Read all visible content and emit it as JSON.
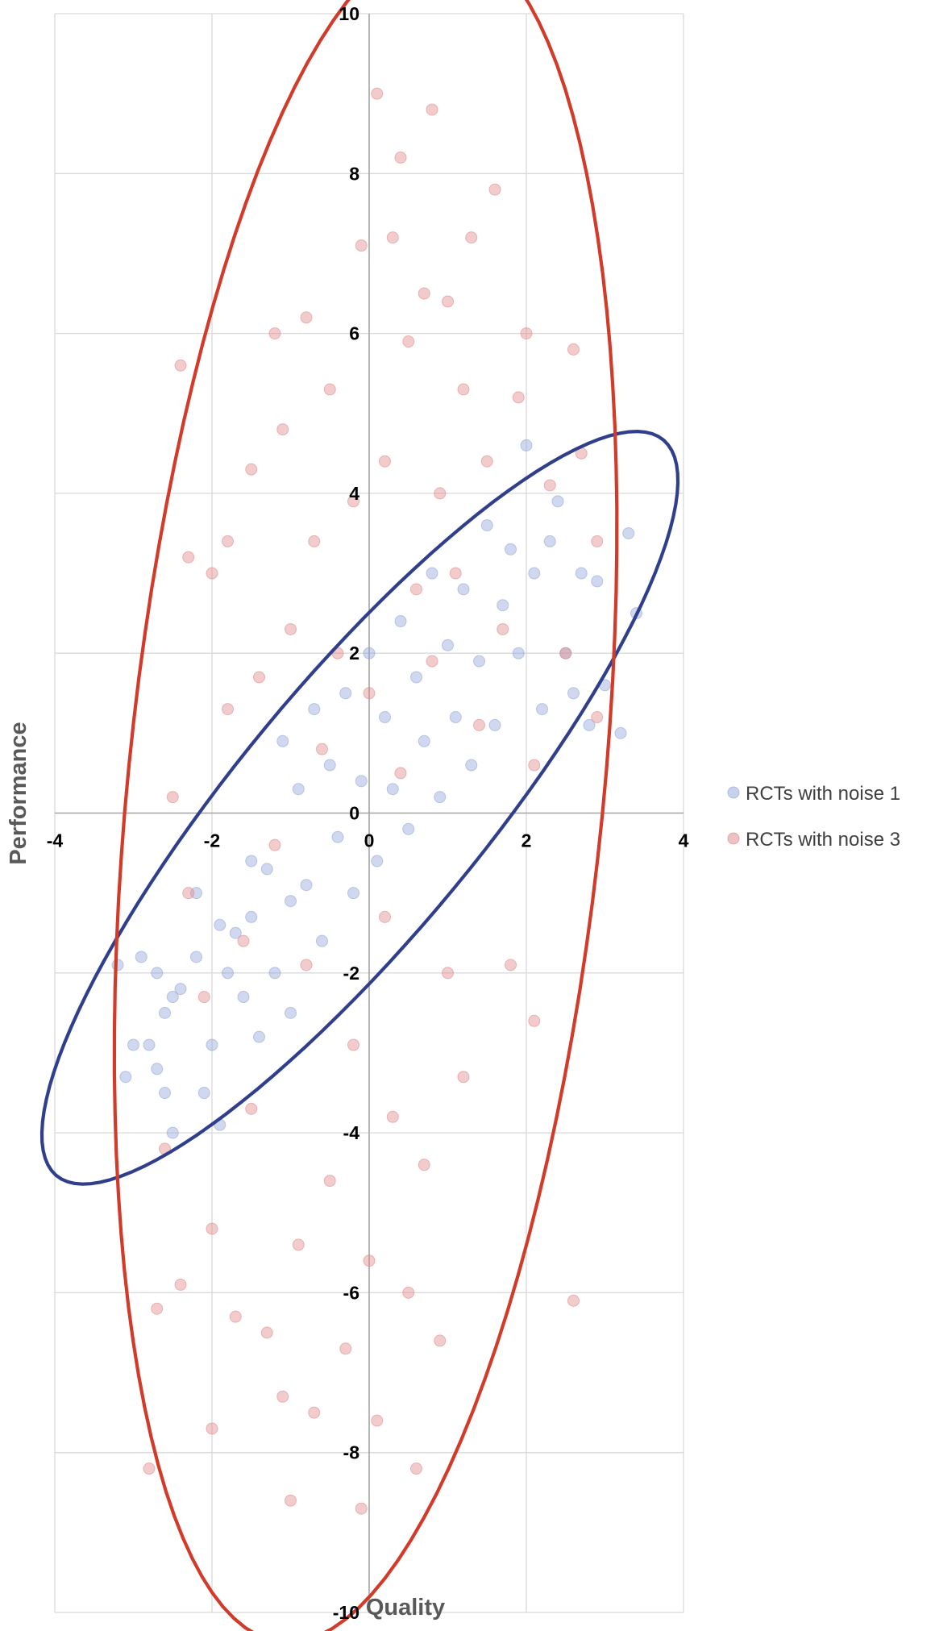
{
  "chart_data": {
    "type": "scatter",
    "xlabel": "Quality",
    "ylabel": "Performance",
    "xlim": [
      -4,
      4
    ],
    "ylim": [
      -10,
      10
    ],
    "x_ticks": [
      -4,
      -2,
      0,
      2,
      4
    ],
    "y_ticks": [
      -10,
      -8,
      -6,
      -4,
      -2,
      0,
      2,
      4,
      6,
      8,
      10
    ],
    "x_tick_labels": [
      "-4",
      "-2",
      "0",
      "2",
      "4"
    ],
    "y_tick_labels": [
      "-10",
      "-8",
      "-6",
      "-4",
      "-2",
      "0",
      "2",
      "4",
      "6",
      "8",
      "10"
    ],
    "grid": true,
    "legend_position": "right",
    "series": [
      {
        "name": "RCTs with noise 1",
        "color": "#8FA3D8",
        "sampled_points": [
          [
            -3.2,
            -1.9
          ],
          [
            -3.1,
            -3.3
          ],
          [
            -3.0,
            -2.9
          ],
          [
            -2.9,
            -1.8
          ],
          [
            -2.8,
            -2.9
          ],
          [
            -2.7,
            -3.2
          ],
          [
            -2.7,
            -2.0
          ],
          [
            -2.6,
            -3.5
          ],
          [
            -2.6,
            -2.5
          ],
          [
            -2.5,
            -2.3
          ],
          [
            -2.5,
            -4.0
          ],
          [
            -2.4,
            -2.2
          ],
          [
            -2.2,
            -1.8
          ],
          [
            -2.2,
            -1.0
          ],
          [
            -2.1,
            -3.5
          ],
          [
            -2.0,
            -2.9
          ],
          [
            -1.9,
            -3.9
          ],
          [
            -1.9,
            -1.4
          ],
          [
            -1.8,
            -2.0
          ],
          [
            -1.7,
            -1.5
          ],
          [
            -1.6,
            -2.3
          ],
          [
            -1.5,
            -0.6
          ],
          [
            -1.5,
            -1.3
          ],
          [
            -1.4,
            -2.8
          ],
          [
            -1.3,
            -0.7
          ],
          [
            -1.2,
            -2.0
          ],
          [
            -1.1,
            0.9
          ],
          [
            -1.0,
            -1.1
          ],
          [
            -1.0,
            -2.5
          ],
          [
            -0.9,
            0.3
          ],
          [
            -0.8,
            -0.9
          ],
          [
            -0.7,
            1.3
          ],
          [
            -0.6,
            -1.6
          ],
          [
            -0.5,
            0.6
          ],
          [
            -0.4,
            -0.3
          ],
          [
            -0.3,
            1.5
          ],
          [
            -0.2,
            -1.0
          ],
          [
            -0.1,
            0.4
          ],
          [
            0.0,
            2.0
          ],
          [
            0.1,
            -0.6
          ],
          [
            0.2,
            1.2
          ],
          [
            0.3,
            0.3
          ],
          [
            0.4,
            2.4
          ],
          [
            0.5,
            -0.2
          ],
          [
            0.6,
            1.7
          ],
          [
            0.7,
            0.9
          ],
          [
            0.8,
            3.0
          ],
          [
            0.9,
            0.2
          ],
          [
            1.0,
            2.1
          ],
          [
            1.1,
            1.2
          ],
          [
            1.2,
            2.8
          ],
          [
            1.3,
            0.6
          ],
          [
            1.4,
            1.9
          ],
          [
            1.5,
            3.6
          ],
          [
            1.6,
            1.1
          ],
          [
            1.7,
            2.6
          ],
          [
            1.8,
            3.3
          ],
          [
            1.9,
            2.0
          ],
          [
            2.0,
            4.6
          ],
          [
            2.1,
            3.0
          ],
          [
            2.2,
            1.3
          ],
          [
            2.3,
            3.4
          ],
          [
            2.4,
            3.9
          ],
          [
            2.5,
            2.0
          ],
          [
            2.6,
            1.5
          ],
          [
            2.7,
            3.0
          ],
          [
            2.8,
            1.1
          ],
          [
            2.9,
            2.9
          ],
          [
            3.0,
            1.6
          ],
          [
            3.2,
            1.0
          ],
          [
            3.3,
            3.5
          ],
          [
            3.4,
            2.5
          ]
        ]
      },
      {
        "name": "RCTs with noise 3",
        "color": "#E08585",
        "sampled_points": [
          [
            -2.8,
            -8.2
          ],
          [
            -2.7,
            -6.2
          ],
          [
            -2.6,
            -4.2
          ],
          [
            -2.5,
            0.2
          ],
          [
            -2.4,
            -5.9
          ],
          [
            -2.4,
            5.6
          ],
          [
            -2.3,
            3.2
          ],
          [
            -2.3,
            -1.0
          ],
          [
            -2.1,
            -2.3
          ],
          [
            -2.0,
            3.0
          ],
          [
            -2.0,
            -5.2
          ],
          [
            -2.0,
            -7.7
          ],
          [
            -1.8,
            3.4
          ],
          [
            -1.8,
            1.3
          ],
          [
            -1.7,
            -6.3
          ],
          [
            -1.6,
            -1.6
          ],
          [
            -1.5,
            4.3
          ],
          [
            -1.5,
            -3.7
          ],
          [
            -1.4,
            1.7
          ],
          [
            -1.3,
            -6.5
          ],
          [
            -1.2,
            6.0
          ],
          [
            -1.2,
            -0.4
          ],
          [
            -1.1,
            4.8
          ],
          [
            -1.1,
            -7.3
          ],
          [
            -1.0,
            2.3
          ],
          [
            -1.0,
            -8.6
          ],
          [
            -0.9,
            -5.4
          ],
          [
            -0.8,
            6.2
          ],
          [
            -0.8,
            -1.9
          ],
          [
            -0.7,
            3.4
          ],
          [
            -0.7,
            -7.5
          ],
          [
            -0.6,
            0.8
          ],
          [
            -0.5,
            -4.6
          ],
          [
            -0.5,
            5.3
          ],
          [
            -0.4,
            2.0
          ],
          [
            -0.3,
            -6.7
          ],
          [
            -0.2,
            3.9
          ],
          [
            -0.2,
            -2.9
          ],
          [
            -0.1,
            7.1
          ],
          [
            -0.1,
            -8.7
          ],
          [
            0.0,
            1.5
          ],
          [
            0.0,
            -5.6
          ],
          [
            0.1,
            9.0
          ],
          [
            0.1,
            -7.6
          ],
          [
            0.2,
            4.4
          ],
          [
            0.2,
            -1.3
          ],
          [
            0.3,
            7.2
          ],
          [
            0.3,
            -3.8
          ],
          [
            0.4,
            8.2
          ],
          [
            0.4,
            0.5
          ],
          [
            0.5,
            -6.0
          ],
          [
            0.5,
            5.9
          ],
          [
            0.6,
            2.8
          ],
          [
            0.6,
            -8.2
          ],
          [
            0.7,
            6.5
          ],
          [
            0.7,
            -4.4
          ],
          [
            0.8,
            8.8
          ],
          [
            0.8,
            1.9
          ],
          [
            0.9,
            4.0
          ],
          [
            0.9,
            -6.6
          ],
          [
            1.0,
            6.4
          ],
          [
            1.0,
            -2.0
          ],
          [
            1.1,
            3.0
          ],
          [
            1.2,
            5.3
          ],
          [
            1.2,
            -3.3
          ],
          [
            1.3,
            7.2
          ],
          [
            1.4,
            1.1
          ],
          [
            1.5,
            4.4
          ],
          [
            1.6,
            7.8
          ],
          [
            1.7,
            2.3
          ],
          [
            1.8,
            -1.9
          ],
          [
            1.9,
            5.2
          ],
          [
            2.0,
            6.0
          ],
          [
            2.1,
            -2.6
          ],
          [
            2.1,
            0.6
          ],
          [
            2.3,
            4.1
          ],
          [
            2.5,
            2.0
          ],
          [
            2.6,
            5.8
          ],
          [
            2.6,
            -6.1
          ],
          [
            2.7,
            4.5
          ],
          [
            2.9,
            1.2
          ],
          [
            2.9,
            3.4
          ]
        ]
      }
    ]
  },
  "legend": {
    "items": [
      {
        "label": "RCTs with noise 1",
        "color": "#8FA3D8"
      },
      {
        "label": "RCTs with noise 3",
        "color": "#E08585"
      }
    ]
  }
}
